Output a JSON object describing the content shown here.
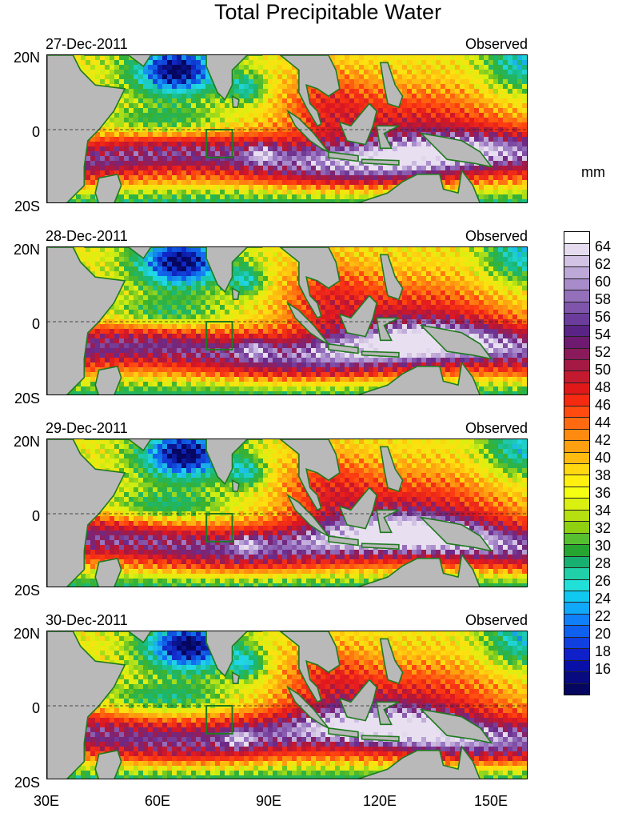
{
  "title": "Total Precipitable Water",
  "units": "mm",
  "panels": [
    {
      "date": "27-Dec-2011",
      "source": "Observed"
    },
    {
      "date": "28-Dec-2011",
      "source": "Observed"
    },
    {
      "date": "29-Dec-2011",
      "source": "Observed"
    },
    {
      "date": "30-Dec-2011",
      "source": "Observed"
    }
  ],
  "lat_labels": [
    "20N",
    "0",
    "20S"
  ],
  "lon_labels": [
    "30E",
    "60E",
    "90E",
    "120E",
    "150E"
  ],
  "lon_values": [
    30,
    60,
    90,
    120,
    150
  ],
  "lon_range": [
    30,
    160
  ],
  "lat_range": [
    -20,
    20
  ],
  "colorbar": {
    "labels": [
      "64",
      "62",
      "60",
      "58",
      "56",
      "54",
      "52",
      "50",
      "48",
      "46",
      "44",
      "42",
      "40",
      "38",
      "36",
      "34",
      "32",
      "30",
      "28",
      "26",
      "24",
      "22",
      "20",
      "18",
      "16"
    ],
    "colors": [
      "#ffffff",
      "#e6dcef",
      "#d2c3e4",
      "#bea8d8",
      "#a88bc9",
      "#9470bb",
      "#7f55ac",
      "#6b3c9c",
      "#5a2386",
      "#6d1a70",
      "#8a1a5a",
      "#a51a45",
      "#c41a30",
      "#e01818",
      "#f52a10",
      "#ff4a10",
      "#ff6a10",
      "#ff8a10",
      "#ffa010",
      "#ffbb10",
      "#ffd810",
      "#fff010",
      "#f5ff10",
      "#d9f010",
      "#b6e010",
      "#8fd010",
      "#56c030",
      "#26a530",
      "#18b070",
      "#20d0a8",
      "#20e0d8",
      "#10c8f0",
      "#10a8f8",
      "#1080f8",
      "#1060f0",
      "#1040e0",
      "#1020c8",
      "#0810a8",
      "#080a80",
      "#050660"
    ]
  },
  "colors": {
    "land": "#b9b9b9",
    "coast": "#1f7a1f",
    "box": "#1f7a1f"
  }
}
